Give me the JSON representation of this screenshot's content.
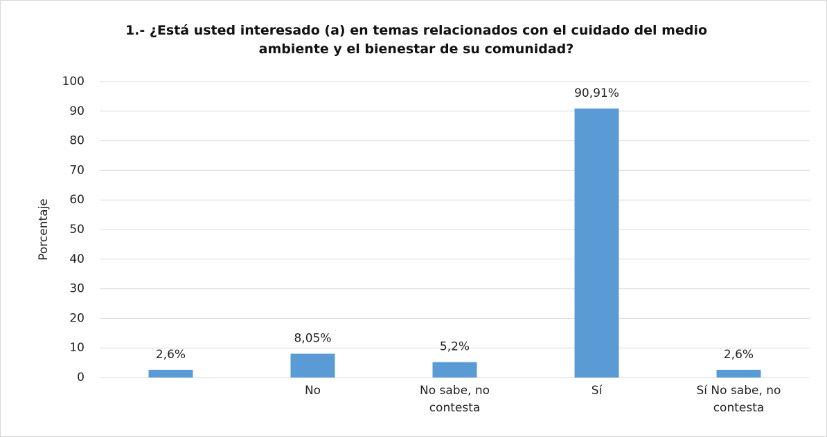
{
  "chart_data": {
    "type": "bar",
    "title": "1.- ¿Está usted interesado (a) en temas relacionados con el cuidado del medio ambiente y el bienestar de su comunidad?",
    "y_label": "Porcentaje",
    "categories": [
      null,
      "No",
      "No sabe, no contesta",
      "Sí",
      "Sí No sabe, no contesta"
    ],
    "values": [
      2.6,
      8.05,
      5.2,
      90.91,
      2.6
    ],
    "value_labels": [
      "2,6%",
      "8,05%",
      "5,2%",
      "90,91%",
      "2,6%"
    ],
    "color": "#5b9bd5",
    "ylim": [
      0,
      100
    ],
    "yticks": [
      0,
      10,
      20,
      30,
      40,
      50,
      60,
      70,
      80,
      90,
      100
    ],
    "grid": true
  }
}
